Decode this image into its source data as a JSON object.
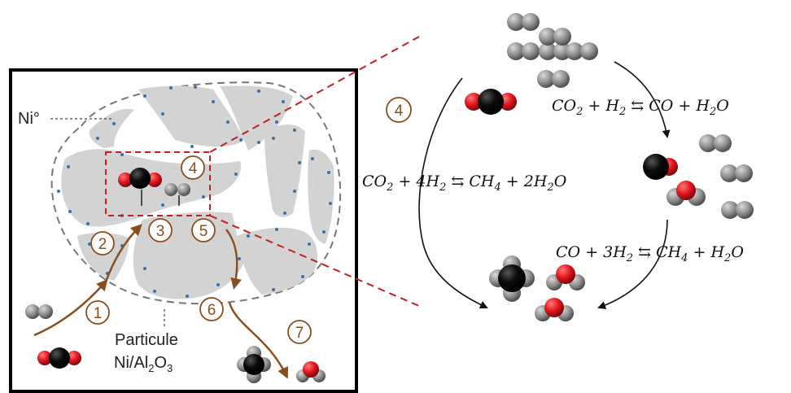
{
  "labels": {
    "ni": "Ni°",
    "particle_line1": "Particule",
    "particle_line2_prefix": "Ni/Al",
    "particle_line2_sub1": "2",
    "particle_line2_mid": "O",
    "particle_line2_sub2": "3"
  },
  "steps": [
    {
      "num": "1"
    },
    {
      "num": "2"
    },
    {
      "num": "3"
    },
    {
      "num": "4"
    },
    {
      "num": "5"
    },
    {
      "num": "6"
    },
    {
      "num": "7"
    },
    {
      "num": "4"
    }
  ],
  "equations": {
    "rwgs": {
      "a": "CO",
      "a_sub": "2",
      "plus1": " + H",
      "b_sub": "2",
      "arrow": " ⇆ ",
      "c": "CO + H",
      "c_sub": "2",
      "d": "O"
    },
    "sabatier": {
      "a": "CO",
      "a_sub": "2",
      "plus1": " + 4H",
      "b_sub": "2",
      "arrow": " ⇆ ",
      "c": "CH",
      "c_sub": "4",
      "d": " + 2H",
      "d_sub": "2",
      "e": "O"
    },
    "co_meth": {
      "a": "CO + 3H",
      "a_sub": "2",
      "arrow": " ⇆ ",
      "c": "CH",
      "c_sub": "4",
      "d": " + H",
      "d_sub": "2",
      "e": "O"
    }
  },
  "colors": {
    "grey_atom": "#8c8c8c",
    "carbon": "#000000",
    "oxygen": "#e3141b",
    "step_brown": "#8b4d1c",
    "zoom_red": "#c81e1e",
    "support_grey": "#d3d3d3",
    "ni_dot": "#3f6fa6"
  }
}
